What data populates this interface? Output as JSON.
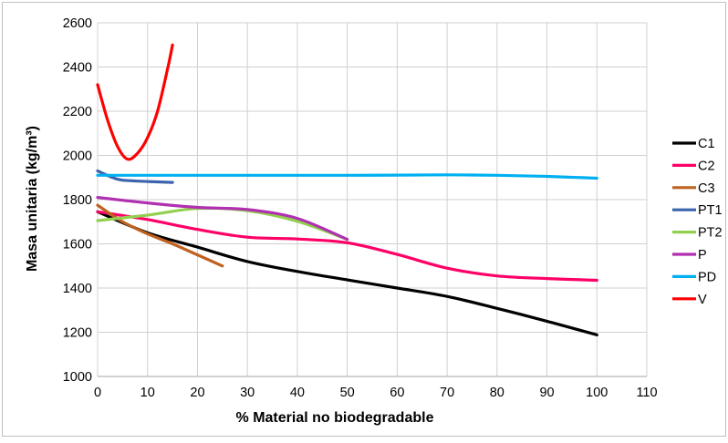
{
  "chart_data": {
    "type": "line",
    "title": "",
    "xlabel": "% Material no biodegradable",
    "ylabel": "Masa unitaria (kg/m³)",
    "xlim": [
      0,
      110
    ],
    "ylim": [
      1000,
      2600
    ],
    "xticks": [
      0,
      10,
      20,
      30,
      40,
      50,
      60,
      70,
      80,
      90,
      100,
      110
    ],
    "yticks": [
      1000,
      1200,
      1400,
      1600,
      1800,
      2000,
      2200,
      2400,
      2600
    ],
    "grid": true,
    "legend_position": "right",
    "series": [
      {
        "name": "C1",
        "color": "#000000",
        "points": [
          [
            0,
            1745
          ],
          [
            10,
            1650
          ],
          [
            20,
            1585
          ],
          [
            30,
            1520
          ],
          [
            40,
            1475
          ],
          [
            50,
            1437
          ],
          [
            60,
            1400
          ],
          [
            70,
            1362
          ],
          [
            80,
            1308
          ],
          [
            90,
            1250
          ],
          [
            100,
            1188
          ]
        ]
      },
      {
        "name": "C2",
        "color": "#ff0066",
        "points": [
          [
            0,
            1745
          ],
          [
            10,
            1710
          ],
          [
            20,
            1665
          ],
          [
            30,
            1630
          ],
          [
            40,
            1622
          ],
          [
            50,
            1605
          ],
          [
            60,
            1552
          ],
          [
            70,
            1490
          ],
          [
            80,
            1455
          ],
          [
            90,
            1443
          ],
          [
            100,
            1435
          ]
        ]
      },
      {
        "name": "C3",
        "color": "#c0611f",
        "points": [
          [
            0,
            1775
          ],
          [
            5,
            1700
          ],
          [
            10,
            1645
          ],
          [
            15,
            1600
          ],
          [
            20,
            1550
          ],
          [
            25,
            1500
          ]
        ]
      },
      {
        "name": "PT1",
        "color": "#3b64ad",
        "points": [
          [
            0,
            1930
          ],
          [
            3,
            1900
          ],
          [
            5,
            1888
          ],
          [
            10,
            1882
          ],
          [
            15,
            1878
          ]
        ]
      },
      {
        "name": "PT2",
        "color": "#92d050",
        "points": [
          [
            0,
            1705
          ],
          [
            10,
            1730
          ],
          [
            20,
            1760
          ],
          [
            30,
            1750
          ],
          [
            40,
            1702
          ],
          [
            50,
            1620
          ]
        ]
      },
      {
        "name": "P",
        "color": "#b030b0",
        "points": [
          [
            0,
            1810
          ],
          [
            10,
            1785
          ],
          [
            20,
            1765
          ],
          [
            30,
            1755
          ],
          [
            40,
            1715
          ],
          [
            50,
            1620
          ]
        ]
      },
      {
        "name": "PD",
        "color": "#00b0f0",
        "points": [
          [
            0,
            1910
          ],
          [
            10,
            1910
          ],
          [
            20,
            1910
          ],
          [
            30,
            1910
          ],
          [
            40,
            1910
          ],
          [
            50,
            1910
          ],
          [
            60,
            1911
          ],
          [
            70,
            1912
          ],
          [
            80,
            1910
          ],
          [
            90,
            1905
          ],
          [
            100,
            1897
          ]
        ]
      },
      {
        "name": "V",
        "color": "#ff0000",
        "points": [
          [
            0,
            2320
          ],
          [
            2,
            2160
          ],
          [
            4,
            2040
          ],
          [
            6,
            1983
          ],
          [
            8,
            2010
          ],
          [
            10,
            2080
          ],
          [
            12,
            2200
          ],
          [
            14,
            2390
          ],
          [
            15,
            2500
          ]
        ]
      }
    ]
  }
}
